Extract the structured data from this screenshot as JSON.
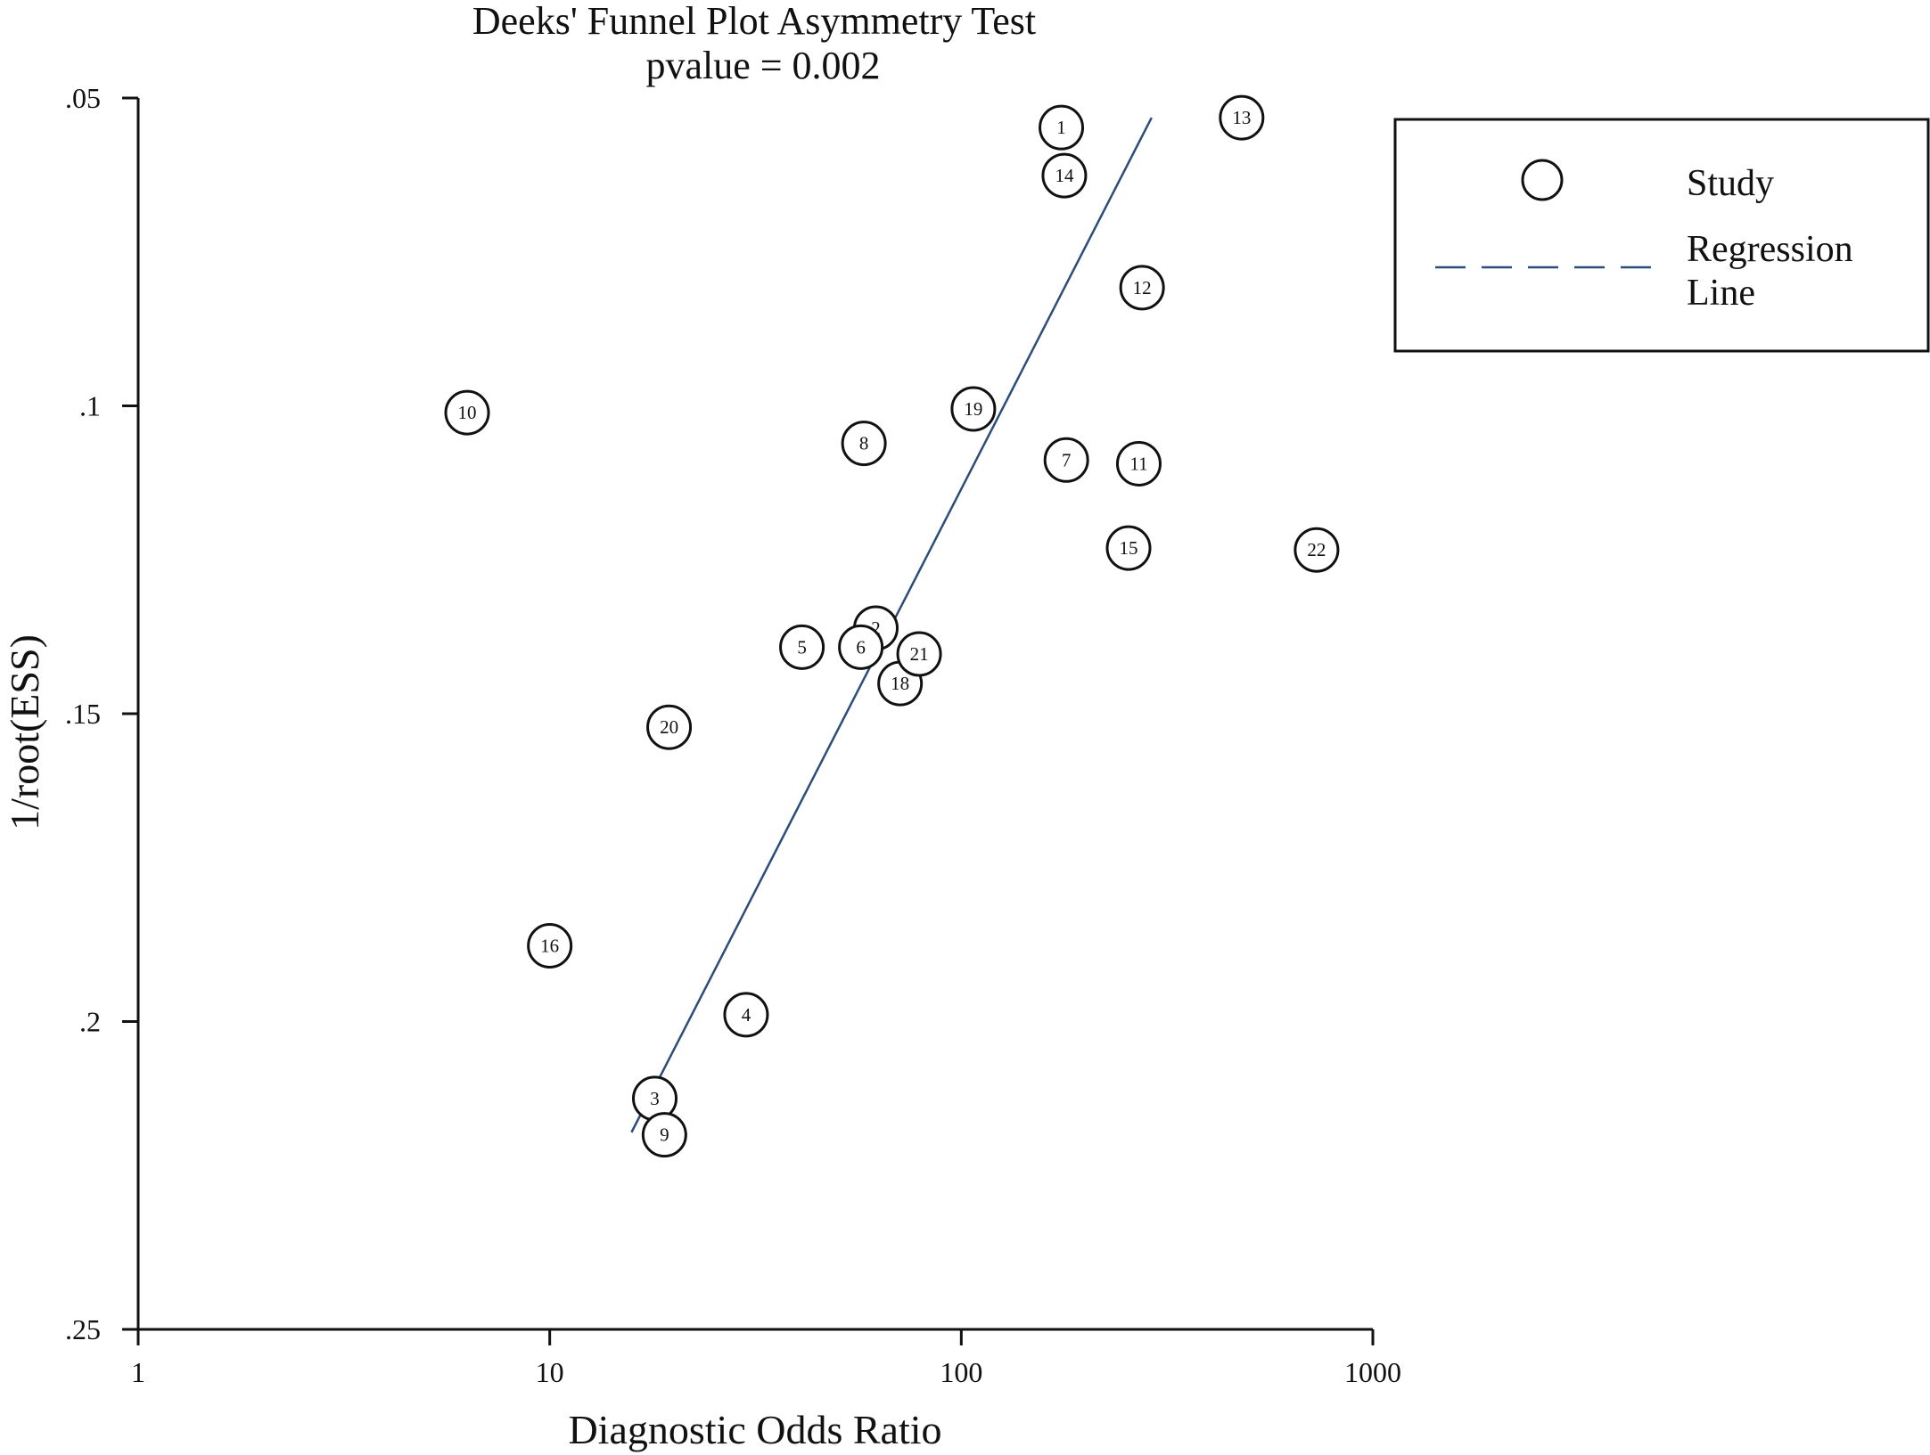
{
  "chart_data": {
    "type": "scatter",
    "title": "Deeks' Funnel Plot Asymmetry Test",
    "subtitle": "pvalue  =  0.002",
    "xlabel": "Diagnostic Odds Ratio",
    "ylabel": "1/root(ESS)",
    "x_scale": "log",
    "xlim": [
      1,
      1000
    ],
    "ylim": [
      0.05,
      0.25
    ],
    "y_inverted": true,
    "x_ticks": [
      {
        "value": 1,
        "label": "1"
      },
      {
        "value": 10,
        "label": "10"
      },
      {
        "value": 100,
        "label": "100"
      },
      {
        "value": 1000,
        "label": "1000"
      }
    ],
    "y_ticks": [
      {
        "value": 0.05,
        "label": ".05"
      },
      {
        "value": 0.1,
        "label": ".1"
      },
      {
        "value": 0.15,
        "label": ".15"
      },
      {
        "value": 0.2,
        "label": ".2"
      },
      {
        "value": 0.25,
        "label": ".25"
      }
    ],
    "grid": false,
    "legend": {
      "position": "top-right",
      "entries": [
        {
          "label": "Study",
          "symbol": "circle"
        },
        {
          "label_lines": [
            "Regression",
            "Line"
          ],
          "symbol": "dashed-line"
        }
      ]
    },
    "series": [
      {
        "name": "Study",
        "points": [
          {
            "label": "1",
            "x": 175,
            "y": 0.0548
          },
          {
            "label": "2",
            "x": 62,
            "y": 0.1361
          },
          {
            "label": "3",
            "x": 18,
            "y": 0.2125
          },
          {
            "label": "4",
            "x": 30,
            "y": 0.1989
          },
          {
            "label": "5",
            "x": 41,
            "y": 0.1392
          },
          {
            "label": "6",
            "x": 57,
            "y": 0.1392
          },
          {
            "label": "7",
            "x": 180,
            "y": 0.1088
          },
          {
            "label": "8",
            "x": 58,
            "y": 0.1061
          },
          {
            "label": "9",
            "x": 19,
            "y": 0.2184
          },
          {
            "label": "10",
            "x": 6.3,
            "y": 0.1011
          },
          {
            "label": "11",
            "x": 270,
            "y": 0.1094
          },
          {
            "label": "12",
            "x": 275,
            "y": 0.0808
          },
          {
            "label": "13",
            "x": 480,
            "y": 0.0532
          },
          {
            "label": "14",
            "x": 178,
            "y": 0.0626
          },
          {
            "label": "15",
            "x": 255,
            "y": 0.1231
          },
          {
            "label": "16",
            "x": 10,
            "y": 0.1877
          },
          {
            "label": "18",
            "x": 71,
            "y": 0.1451
          },
          {
            "label": "19",
            "x": 107,
            "y": 0.1005
          },
          {
            "label": "20",
            "x": 19.5,
            "y": 0.1522
          },
          {
            "label": "21",
            "x": 79,
            "y": 0.1403
          },
          {
            "label": "22",
            "x": 730,
            "y": 0.1234
          }
        ]
      },
      {
        "name": "Regression Line",
        "style": "line",
        "color": "#2a4d7a",
        "x": [
          15.8,
          290
        ],
        "y": [
          0.218,
          0.0532
        ]
      }
    ]
  }
}
